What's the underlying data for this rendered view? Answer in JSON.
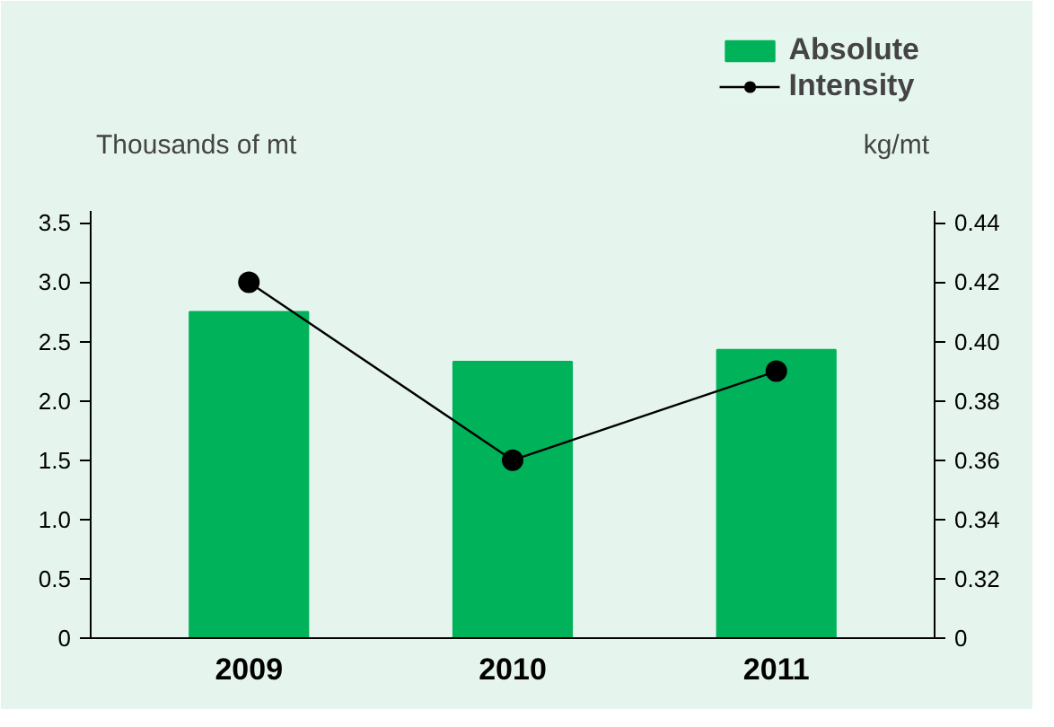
{
  "chart_data": {
    "type": "bar",
    "categories": [
      "2009",
      "2010",
      "2011"
    ],
    "series": [
      {
        "name": "Absolute",
        "color": "#00b259",
        "values": [
          2.75,
          2.33,
          2.43
        ]
      },
      {
        "name": "Intensity",
        "type": "line",
        "axis": "y2",
        "color": "#000000",
        "marker": "circle",
        "values": [
          0.42,
          0.36,
          0.39
        ]
      }
    ],
    "ylabel": "Thousands of mt",
    "y2label": "kg/mt",
    "ylim": [
      0,
      3.6
    ],
    "yticks": [
      0,
      0.5,
      {
        "value": 1,
        "label": "1.0"
      },
      1.5,
      {
        "value": 2,
        "label": "2.0"
      },
      2.5,
      {
        "value": 3,
        "label": "3.0"
      },
      3.5
    ],
    "y2lim": [
      0.3,
      0.444
    ],
    "y2ticks": [
      {
        "value": 0.3,
        "label": "0"
      },
      0.32,
      0.34,
      0.36,
      0.38,
      {
        "value": 0.4,
        "label": "0.40"
      },
      0.42,
      0.44
    ],
    "grid": false,
    "legend": "top right"
  }
}
